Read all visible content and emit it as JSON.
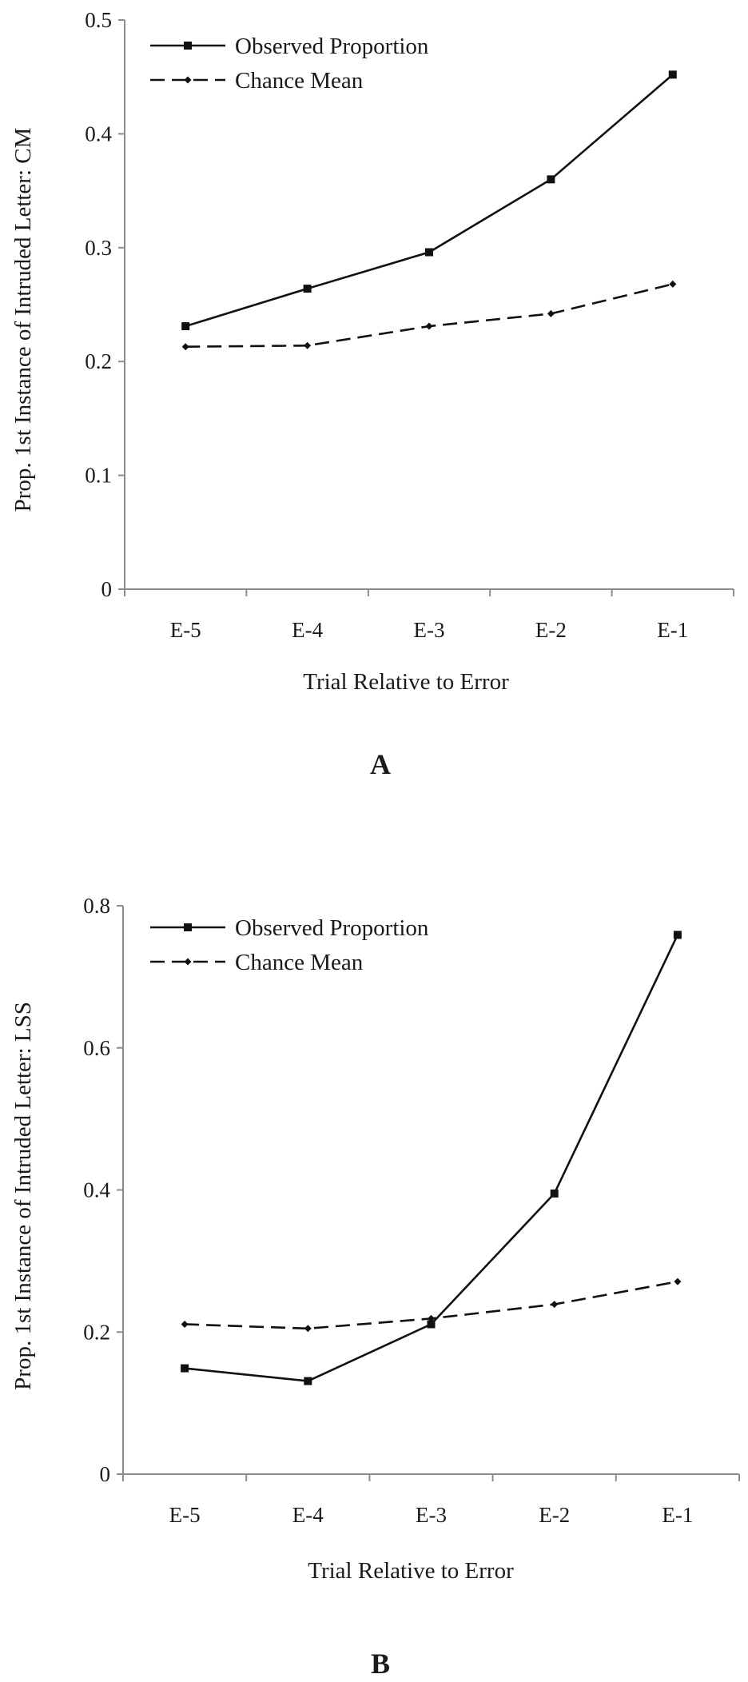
{
  "chart_data": [
    {
      "type": "line",
      "panel_label": "A",
      "categories": [
        "E-5",
        "E-4",
        "E-3",
        "E-2",
        "E-1"
      ],
      "series": [
        {
          "name": "Observed Proportion",
          "values": [
            0.231,
            0.264,
            0.296,
            0.36,
            0.452
          ],
          "marker": "square",
          "linestyle": "solid"
        },
        {
          "name": "Chance Mean",
          "values": [
            0.213,
            0.214,
            0.231,
            0.242,
            0.268
          ],
          "marker": "diamond",
          "linestyle": "dashed"
        }
      ],
      "xlabel": "Trial Relative to Error",
      "ylabel": "Prop. 1st Instance of Intruded Letter: CM",
      "ylim": [
        0,
        0.5
      ],
      "yticks": [
        "0",
        "0.1",
        "0.2",
        "0.3",
        "0.4",
        "0.5"
      ],
      "grid": false,
      "legend_position": "top-left"
    },
    {
      "type": "line",
      "panel_label": "B",
      "categories": [
        "E-5",
        "E-4",
        "E-3",
        "E-2",
        "E-1"
      ],
      "series": [
        {
          "name": "Observed Proportion",
          "values": [
            0.149,
            0.131,
            0.211,
            0.395,
            0.759
          ],
          "marker": "square",
          "linestyle": "solid"
        },
        {
          "name": "Chance Mean",
          "values": [
            0.211,
            0.205,
            0.219,
            0.239,
            0.271
          ],
          "marker": "diamond",
          "linestyle": "dashed"
        }
      ],
      "xlabel": "Trial Relative to Error",
      "ylabel": "Prop. 1st Instance of Intruded Letter: LSS",
      "ylim": [
        0,
        0.8
      ],
      "yticks": [
        "0",
        "0.2",
        "0.4",
        "0.6",
        "0.8"
      ],
      "grid": false,
      "legend_position": "top-left"
    }
  ]
}
